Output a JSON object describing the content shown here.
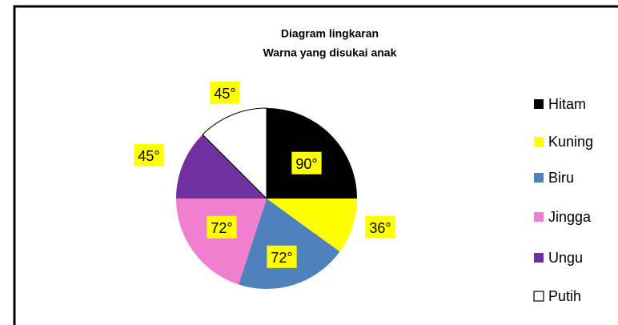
{
  "chart_data": {
    "type": "pie",
    "title": "Diagram lingkaran",
    "subtitle": "Warna yang disukai anak",
    "categories": [
      "Hitam",
      "Kuning",
      "Biru",
      "Jingga",
      "Ungu",
      "Putih"
    ],
    "values": [
      90,
      36,
      72,
      72,
      45,
      45
    ],
    "value_labels": [
      "90°",
      "36°",
      "72°",
      "72°",
      "45°",
      "45°"
    ],
    "colors": [
      "#000000",
      "#ffff00",
      "#4f81bd",
      "#f07fcf",
      "#7030a0",
      "#ffffff"
    ],
    "legend": "right"
  }
}
